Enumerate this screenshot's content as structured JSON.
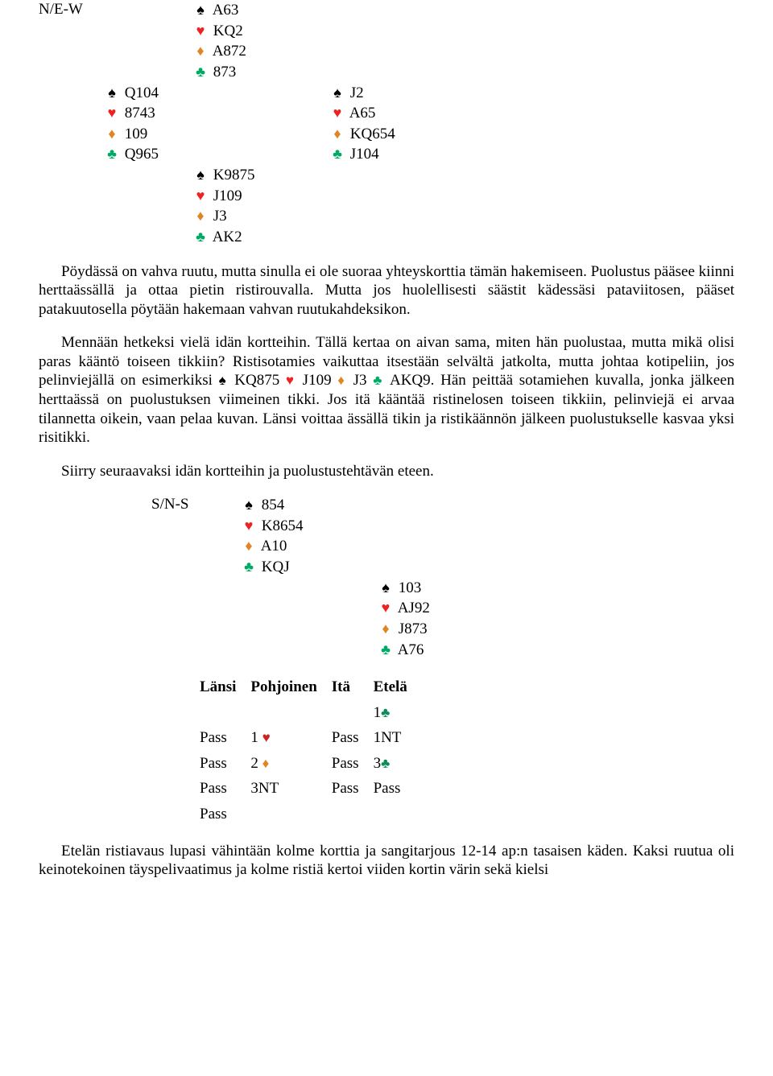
{
  "suits": {
    "spade": "♠",
    "heart": "♥",
    "diamond": "♦",
    "club": "♣"
  },
  "colors": {
    "spade": "#000000",
    "heart": "#cc2222",
    "diamond": "#e08522",
    "club": "#0a8a55",
    "text": "#000000",
    "background": "#ffffff"
  },
  "deal1": {
    "vul": "N/E-W",
    "north": {
      "s": "A63",
      "h": "KQ2",
      "d": "A872",
      "c": "873"
    },
    "west": {
      "s": "Q104",
      "h": "8743",
      "d": "109",
      "c": "Q965"
    },
    "east": {
      "s": "J2",
      "h": "A65",
      "d": "KQ654",
      "c": "J104"
    },
    "south": {
      "s": "K9875",
      "h": "J109",
      "d": "J3",
      "c": "AK2"
    }
  },
  "para1a": "Pöydässä on vahva ruutu, mutta sinulla ei ole suoraa yhteyskorttia tämän hakemiseen. Puolustus pääsee kiinni herttaässällä ja ottaa pietin ristirouvalla. Mutta jos huolellisesti säästit kädessäsi pataviitosen, pääset patakuutosella pöytään hakemaan vahvan ruutukahdeksikon.",
  "para1b_pre": "Mennään hetkeksi vielä idän kortteihin. Tällä kertaa on aivan sama, miten hän puolustaa, mutta mikä olisi paras kääntö toiseen tikkiin? Ristisotamies vaikuttaa itsestään selvältä jatkolta, mutta johtaa kotipeliin, jos pelinviejällä on esimerkiksi ",
  "inline_hand": {
    "s": "KQ875",
    "h": "J109",
    "d": "J3",
    "c": "AKQ9"
  },
  "para1b_post": ". Hän peittää sotamiehen kuvalla, jonka jälkeen herttaässä on puolustuksen viimeinen tikki. Jos itä kääntää ristinelosen toiseen tikkiin, pelinviejä ei arvaa tilannetta oikein, vaan pelaa kuvan. Länsi voittaa ässällä tikin ja ristikäännön jälkeen puolustukselle kasvaa yksi risitikki.",
  "para1c": "Siirry seuraavaksi idän kortteihin ja puolustustehtävän eteen.",
  "deal2": {
    "vul": "S/N-S",
    "north": {
      "s": "854",
      "h": "K8654",
      "d": "A10",
      "c": "KQJ"
    },
    "east": {
      "s": "103",
      "h": "AJ92",
      "d": "J873",
      "c": "A76"
    }
  },
  "bidding": {
    "headers": [
      "Länsi",
      "Pohjoinen",
      "Itä",
      "Etelä"
    ],
    "rows": [
      [
        "",
        "",
        "",
        {
          "text": "1",
          "suit": "club"
        }
      ],
      [
        "Pass",
        {
          "text": "1 ",
          "suit": "heart"
        },
        "Pass",
        "1NT"
      ],
      [
        "Pass",
        {
          "text": "2 ",
          "suit": "diamond"
        },
        "Pass",
        {
          "text": "3",
          "suit": "club"
        }
      ],
      [
        "Pass",
        "3NT",
        "Pass",
        "Pass"
      ],
      [
        "Pass",
        "",
        "",
        ""
      ]
    ]
  },
  "para2": "Etelän ristiavaus lupasi vähintään kolme korttia ja sangitarjous 12-14 ap:n tasaisen käden. Kaksi ruutua oli keinotekoinen täyspelivaatimus ja kolme ristiä kertoi viiden kortin värin sekä kielsi"
}
